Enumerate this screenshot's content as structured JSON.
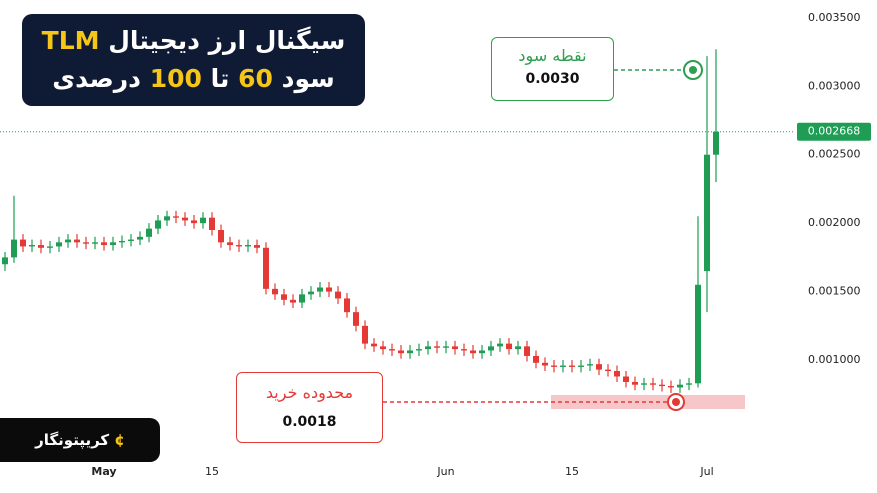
{
  "header": {
    "line1": "سیگنال ارز دیجیتال",
    "coin": "TLM",
    "line2_a": "سود",
    "gain_min": "60",
    "line2_b": "تا",
    "gain_max": "100",
    "line2_c": "درصدی"
  },
  "brand": "کریپتونگار",
  "take_profit": {
    "label": "نقطه سود",
    "price": "0.0030"
  },
  "buy_zone": {
    "label": "محدوده خرید",
    "price": "0.0018"
  },
  "chart_data": {
    "type": "candlestick",
    "categories": [
      null,
      null,
      null,
      null,
      null,
      null,
      null,
      null,
      null,
      null,
      null,
      "May",
      null,
      null,
      null,
      null,
      null,
      null,
      null,
      null,
      null,
      null,
      null,
      "15",
      null,
      null,
      null,
      null,
      null,
      null,
      null,
      null,
      null,
      null,
      null,
      null,
      null,
      null,
      null,
      null,
      null,
      null,
      null,
      null,
      null,
      null,
      null,
      null,
      null,
      "Jun",
      null,
      null,
      null,
      null,
      null,
      null,
      null,
      null,
      null,
      null,
      null,
      null,
      null,
      "15",
      null,
      null,
      null,
      null,
      null,
      null,
      null,
      null,
      null,
      null,
      null,
      null,
      null,
      null,
      "Jul",
      null
    ],
    "open": [
      0.0017,
      0.00175,
      0.00188,
      0.00183,
      0.00184,
      0.00182,
      0.00183,
      0.00186,
      0.00188,
      0.00186,
      0.00185,
      0.00186,
      0.00184,
      0.00186,
      0.00187,
      0.00188,
      0.0019,
      0.00196,
      0.00202,
      0.00205,
      0.00204,
      0.00202,
      0.002,
      0.00204,
      0.00195,
      0.00186,
      0.00184,
      0.00183,
      0.00184,
      0.00182,
      0.00152,
      0.00148,
      0.00144,
      0.00142,
      0.00148,
      0.0015,
      0.00153,
      0.0015,
      0.00145,
      0.00135,
      0.00125,
      0.00112,
      0.0011,
      0.00108,
      0.00107,
      0.00105,
      0.00107,
      0.00108,
      0.0011,
      0.00109,
      0.0011,
      0.00108,
      0.00107,
      0.00105,
      0.00107,
      0.0011,
      0.00112,
      0.00108,
      0.0011,
      0.00103,
      0.00098,
      0.00096,
      0.00095,
      0.00096,
      0.00095,
      0.00096,
      0.00097,
      0.00093,
      0.00092,
      0.00088,
      0.00084,
      0.00082,
      0.00083,
      0.00082,
      0.00081,
      0.0008,
      0.00082,
      0.00083,
      0.00165,
      0.0025
    ],
    "high": [
      0.00179,
      0.0022,
      0.00192,
      0.00188,
      0.00188,
      0.00187,
      0.0019,
      0.00192,
      0.00192,
      0.0019,
      0.0019,
      0.0019,
      0.0019,
      0.00191,
      0.00192,
      0.00194,
      0.002,
      0.00206,
      0.00209,
      0.00209,
      0.00208,
      0.00206,
      0.00208,
      0.00208,
      0.00199,
      0.0019,
      0.00188,
      0.00188,
      0.00188,
      0.00186,
      0.00156,
      0.00152,
      0.00148,
      0.00152,
      0.00154,
      0.00157,
      0.00157,
      0.00154,
      0.00149,
      0.00139,
      0.00129,
      0.00116,
      0.00114,
      0.00112,
      0.00111,
      0.00111,
      0.00112,
      0.00114,
      0.00114,
      0.00114,
      0.00114,
      0.00112,
      0.00111,
      0.00111,
      0.00114,
      0.00116,
      0.00116,
      0.00114,
      0.00114,
      0.00107,
      0.00102,
      0.001,
      0.001,
      0.001,
      0.001,
      0.00101,
      0.00101,
      0.00097,
      0.00096,
      0.00092,
      0.00088,
      0.00087,
      0.00087,
      0.00086,
      0.00085,
      0.00086,
      0.00087,
      0.00205,
      0.00322,
      0.00327
    ],
    "low": [
      0.00165,
      0.00171,
      0.00179,
      0.00179,
      0.00178,
      0.00178,
      0.00179,
      0.00182,
      0.00182,
      0.00181,
      0.00181,
      0.0018,
      0.0018,
      0.00182,
      0.00183,
      0.00184,
      0.00186,
      0.00192,
      0.00198,
      0.002,
      0.00198,
      0.00196,
      0.00196,
      0.00191,
      0.00182,
      0.0018,
      0.00179,
      0.00179,
      0.00178,
      0.00148,
      0.00144,
      0.0014,
      0.00138,
      0.00138,
      0.00144,
      0.00146,
      0.00146,
      0.00141,
      0.00131,
      0.00121,
      0.00108,
      0.00106,
      0.00104,
      0.00103,
      0.00101,
      0.00101,
      0.00103,
      0.00104,
      0.00105,
      0.00105,
      0.00104,
      0.00103,
      0.00101,
      0.00101,
      0.00103,
      0.00106,
      0.00104,
      0.00104,
      0.00099,
      0.00094,
      0.00092,
      0.00091,
      0.00091,
      0.00091,
      0.00091,
      0.00092,
      0.00089,
      0.00088,
      0.00084,
      0.0008,
      0.00078,
      0.00078,
      0.00078,
      0.00077,
      0.00076,
      0.00076,
      0.00078,
      0.0008,
      0.00135,
      0.0023
    ],
    "close": [
      0.00175,
      0.00188,
      0.00183,
      0.00184,
      0.00182,
      0.00183,
      0.00186,
      0.00188,
      0.00186,
      0.00185,
      0.00186,
      0.00184,
      0.00186,
      0.00187,
      0.00188,
      0.0019,
      0.00196,
      0.00202,
      0.00205,
      0.00204,
      0.00202,
      0.002,
      0.00204,
      0.00195,
      0.00186,
      0.00184,
      0.00183,
      0.00184,
      0.00182,
      0.00152,
      0.00148,
      0.00144,
      0.00142,
      0.00148,
      0.0015,
      0.00153,
      0.0015,
      0.00145,
      0.00135,
      0.00125,
      0.00112,
      0.0011,
      0.00108,
      0.00107,
      0.00105,
      0.00107,
      0.00108,
      0.0011,
      0.00109,
      0.0011,
      0.00108,
      0.00107,
      0.00105,
      0.00107,
      0.0011,
      0.00112,
      0.00108,
      0.0011,
      0.00103,
      0.00098,
      0.00096,
      0.00095,
      0.00096,
      0.00095,
      0.00096,
      0.00097,
      0.00093,
      0.00092,
      0.00088,
      0.00084,
      0.00082,
      0.00083,
      0.00082,
      0.00081,
      0.0008,
      0.00082,
      0.00083,
      0.00155,
      0.0025,
      0.002668
    ],
    "up_color": "#1f9d55",
    "down_color": "#e53935",
    "ylim": [
      0.00027,
      0.00363
    ],
    "yticks": [
      {
        "value": 0.001,
        "label": "0.001000"
      },
      {
        "value": 0.0015,
        "label": "0.001500"
      },
      {
        "value": 0.002,
        "label": "0.002000"
      },
      {
        "value": 0.0025,
        "label": "0.002500"
      },
      {
        "value": 0.003,
        "label": "0.003000"
      },
      {
        "value": 0.0035,
        "label": "0.003500"
      }
    ],
    "last_price": 0.002668,
    "grid": false
  }
}
